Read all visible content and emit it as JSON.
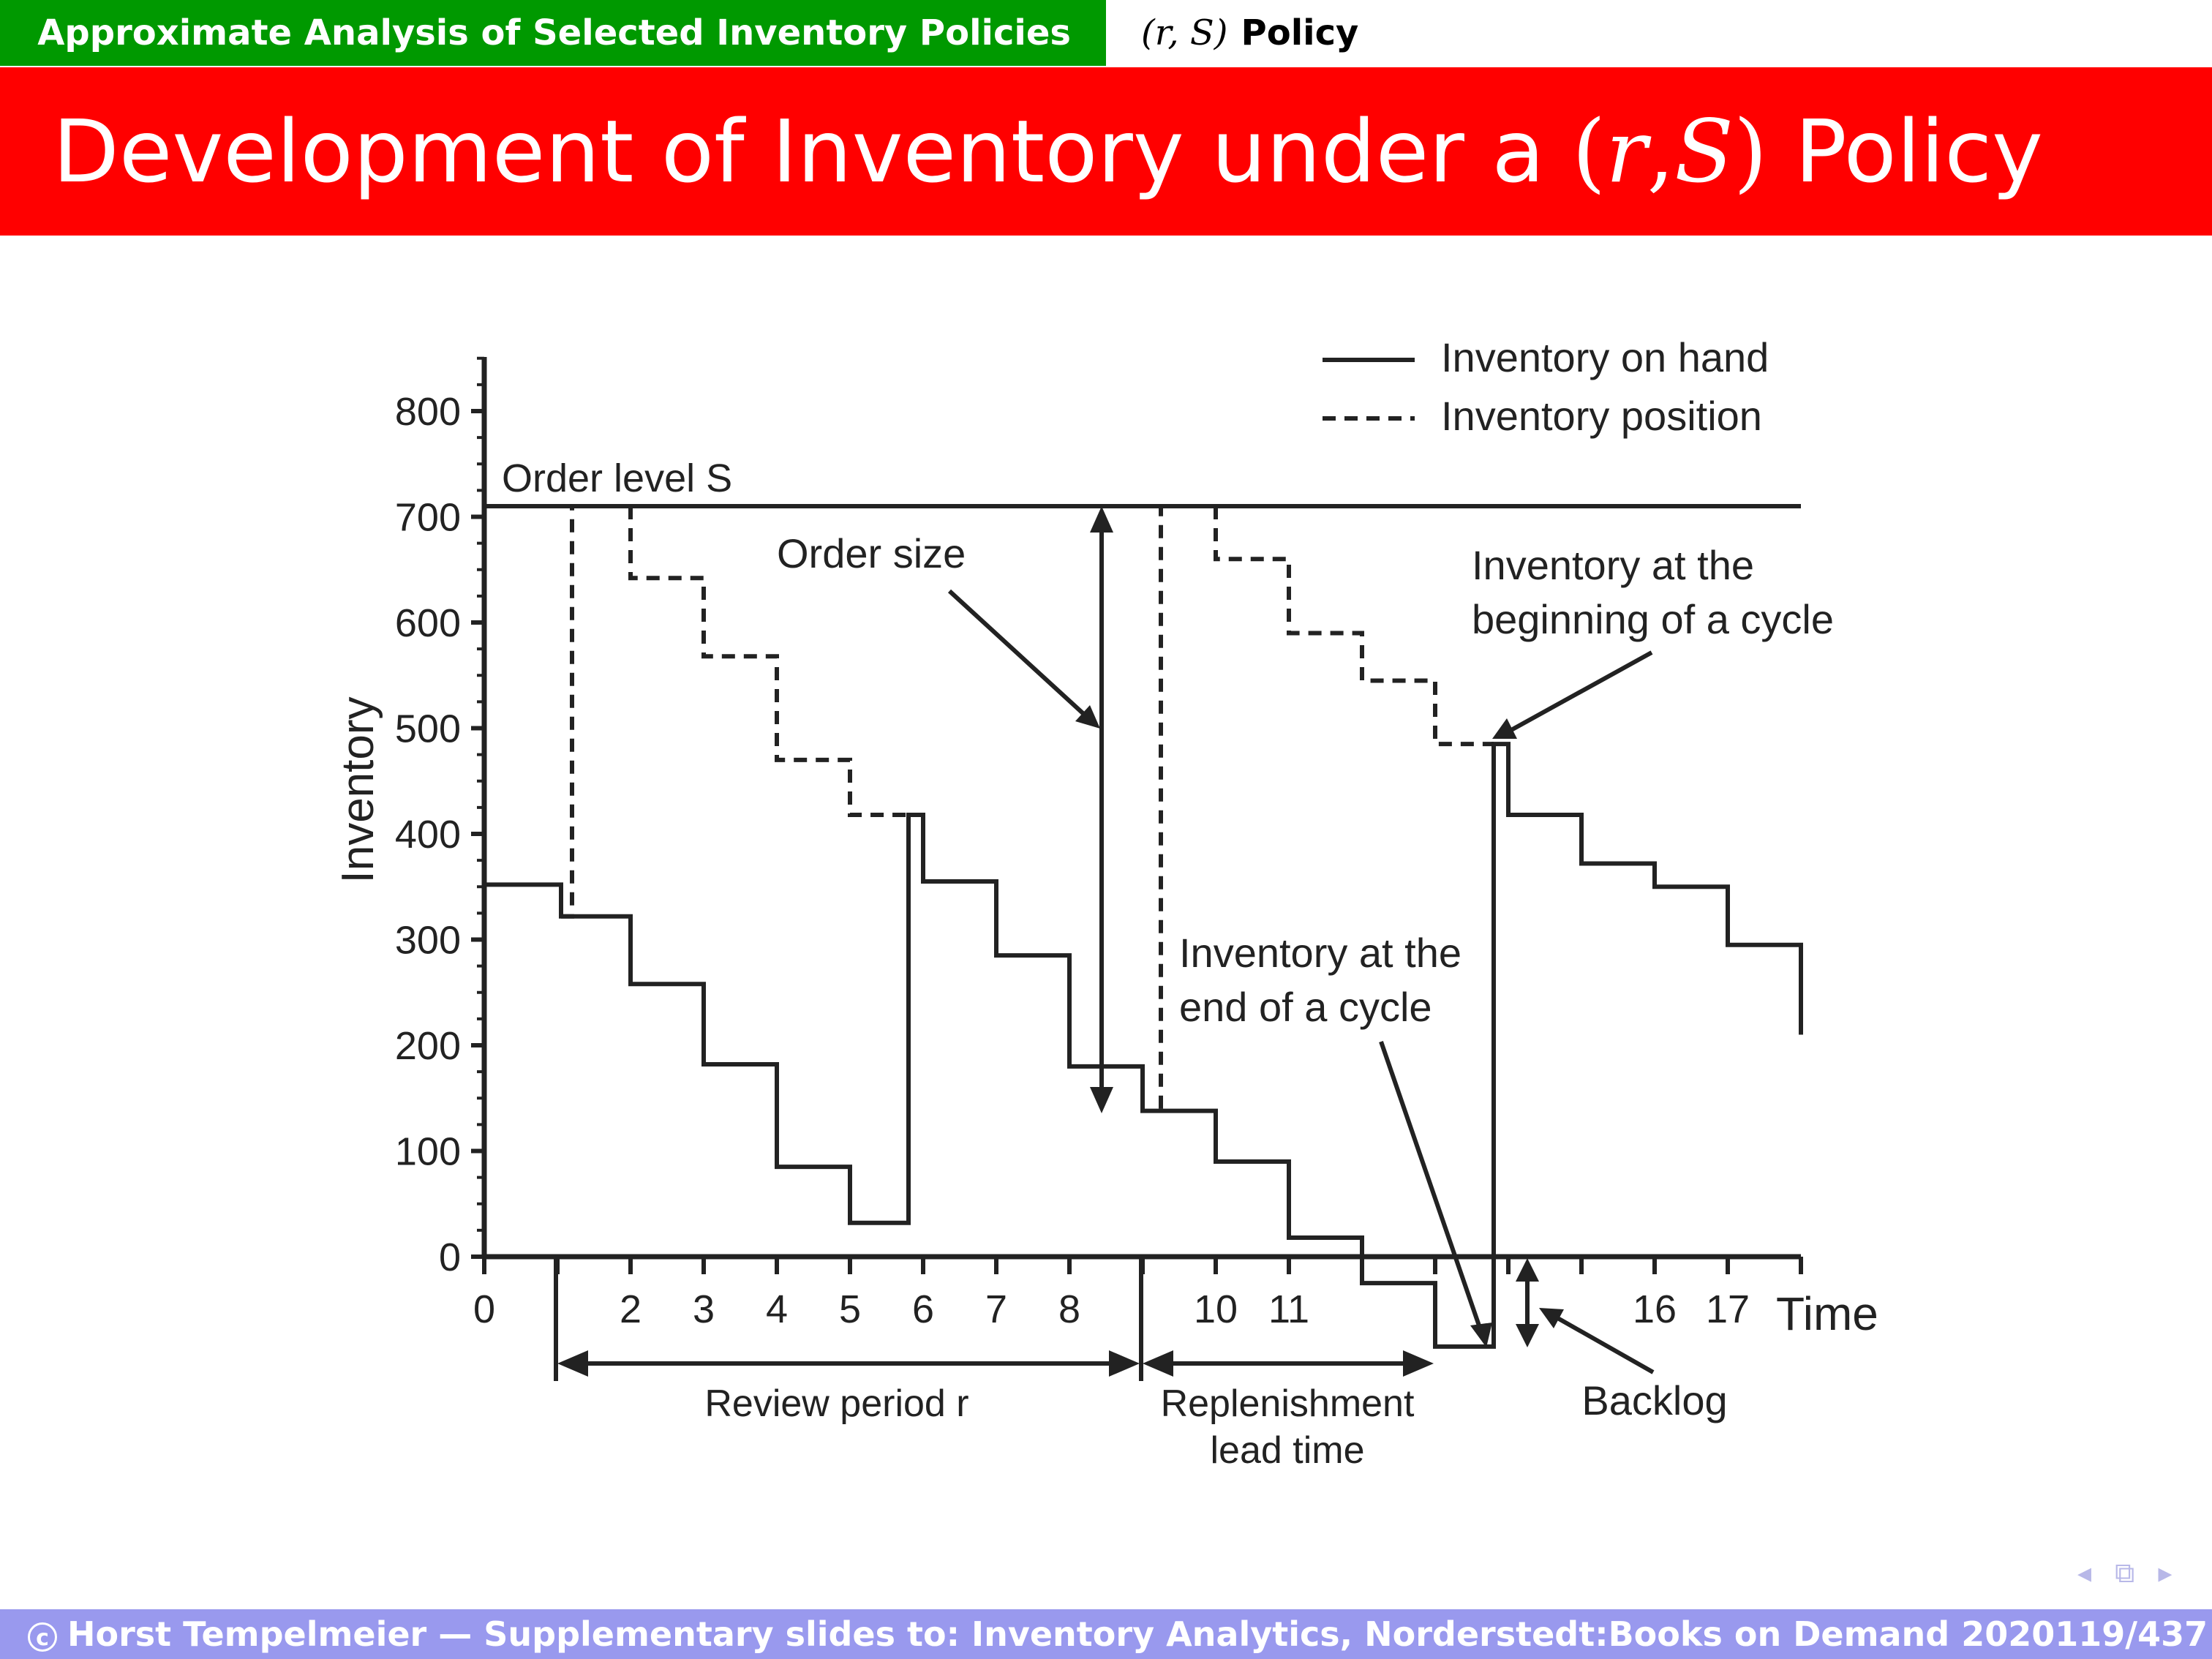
{
  "header": {
    "section": "Approximate Analysis of Selected Inventory Policies",
    "subsection_math": "(r, S)",
    "subsection_label": "Policy"
  },
  "slide": {
    "title_pre": "Development of Inventory under a",
    "title_math_open": "(",
    "title_math_r": "r",
    "title_math_sep": ", ",
    "title_math_S": "S",
    "title_math_close": ")",
    "title_post": "Policy"
  },
  "figure": {
    "ylabel": "Inventory",
    "xlabel": "Time",
    "y_ticks": [
      "0",
      "100",
      "200",
      "300",
      "400",
      "500",
      "600",
      "700",
      "800"
    ],
    "x_tick_labels": [
      {
        "x": 0,
        "label": "0"
      },
      {
        "x": 2,
        "label": "2"
      },
      {
        "x": 3,
        "label": "3"
      },
      {
        "x": 4,
        "label": "4"
      },
      {
        "x": 5,
        "label": "5"
      },
      {
        "x": 6,
        "label": "6"
      },
      {
        "x": 7,
        "label": "7"
      },
      {
        "x": 8,
        "label": "8"
      },
      {
        "x": 10,
        "label": "10"
      },
      {
        "x": 11,
        "label": "11"
      },
      {
        "x": 16,
        "label": "16"
      },
      {
        "x": 17,
        "label": "17"
      }
    ],
    "xlim": [
      0,
      18
    ],
    "ylim": [
      0,
      800
    ],
    "order_level": 710,
    "legend": {
      "on_hand": "Inventory on hand",
      "position": "Inventory position"
    },
    "labels": {
      "order_level": "Order level S",
      "order_size": "Order size",
      "begin_cycle_1": "Inventory at the",
      "begin_cycle_2": "beginning of a cycle",
      "end_cycle_1": "Inventory at the",
      "end_cycle_2": "end of a cycle",
      "review_period": "Review period r",
      "lead_time_1": "Replenishment",
      "lead_time_2": "lead time",
      "backlog": "Backlog"
    },
    "on_hand_path": [
      [
        0,
        352
      ],
      [
        1.05,
        352
      ],
      [
        1.05,
        322
      ],
      [
        2,
        322
      ],
      [
        2,
        258
      ],
      [
        3,
        258
      ],
      [
        3,
        182
      ],
      [
        4,
        182
      ],
      [
        4,
        85
      ],
      [
        5,
        85
      ],
      [
        5,
        32
      ],
      [
        5.8,
        32
      ],
      [
        5.8,
        418
      ],
      [
        6,
        418
      ],
      [
        6,
        355
      ],
      [
        7,
        355
      ],
      [
        7,
        285
      ],
      [
        8,
        285
      ],
      [
        8,
        180
      ],
      [
        9,
        180
      ],
      [
        9,
        138
      ],
      [
        10,
        138
      ],
      [
        10,
        90
      ],
      [
        11,
        90
      ],
      [
        11,
        18
      ],
      [
        12,
        18
      ],
      [
        12,
        -25
      ],
      [
        13,
        -25
      ],
      [
        13,
        -85
      ],
      [
        13.8,
        -85
      ],
      [
        13.8,
        485
      ],
      [
        14,
        485
      ],
      [
        14,
        418
      ],
      [
        15,
        418
      ],
      [
        15,
        372
      ],
      [
        16,
        372
      ],
      [
        16,
        350
      ],
      [
        17,
        350
      ],
      [
        17,
        295
      ],
      [
        18,
        295
      ],
      [
        18,
        210
      ]
    ],
    "position_path": [
      [
        1.05,
        322
      ],
      [
        1.2,
        322
      ],
      [
        1.2,
        710
      ]
    ],
    "position_path_2": [
      [
        2,
        710
      ],
      [
        2,
        642
      ],
      [
        3,
        642
      ],
      [
        3,
        568
      ],
      [
        4,
        568
      ],
      [
        4,
        470
      ],
      [
        5,
        470
      ],
      [
        5,
        418
      ],
      [
        5.8,
        418
      ]
    ],
    "position_path_3": [
      [
        9.25,
        140
      ],
      [
        9.25,
        710
      ]
    ],
    "position_path_4": [
      [
        10,
        710
      ],
      [
        10,
        660
      ],
      [
        11,
        660
      ],
      [
        11,
        590
      ],
      [
        12,
        590
      ],
      [
        12,
        545
      ],
      [
        13,
        545
      ],
      [
        13,
        485
      ],
      [
        13.8,
        485
      ]
    ]
  },
  "footer": {
    "credit": "Horst Tempelmeier — Supplementary slides to: Inventory Analytics, Norderstedt:Books on Demand 2020",
    "copyright_symbol": "c",
    "page": "119/437"
  }
}
